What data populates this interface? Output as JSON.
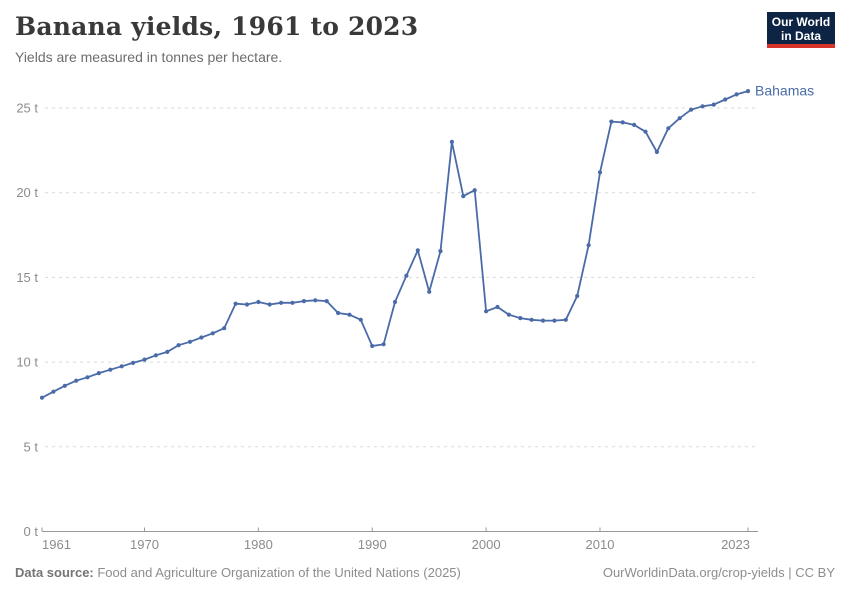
{
  "header": {
    "title": "Banana yields, 1961 to 2023",
    "subtitle": "Yields are measured in tonnes per hectare.",
    "logo": {
      "line1": "Our World",
      "line2": "in Data"
    }
  },
  "footer": {
    "source_label": "Data source:",
    "source_text": " Food and Agriculture Organization of the United Nations (2025)",
    "right_text": "OurWorldinData.org/crop-yields | CC BY"
  },
  "colors": {
    "series_blue": "#4a6ba8",
    "grid": "#d9d9d9",
    "axis": "#999999",
    "tick_label": "#8c8c8c",
    "logo_bg": "#0d2444",
    "logo_red": "#d7352a"
  },
  "chart_data": {
    "type": "line",
    "title": "Banana yields, 1961 to 2023",
    "subtitle": "Yields are measured in tonnes per hectare.",
    "xlabel": "",
    "ylabel": "tonnes per hectare",
    "unit": "t",
    "xlim": [
      1961,
      2023
    ],
    "ylim": [
      0,
      25
    ],
    "grid": "horizontal-dashed",
    "legend_position": "end-of-line-label",
    "x_ticks": [
      1961,
      1970,
      1980,
      1990,
      2000,
      2010,
      2023
    ],
    "y_ticks": [
      0,
      5,
      10,
      15,
      20,
      25
    ],
    "series": [
      {
        "name": "Bahamas",
        "color": "#4a6ba8",
        "x": [
          1961,
          1962,
          1963,
          1964,
          1965,
          1966,
          1967,
          1968,
          1969,
          1970,
          1971,
          1972,
          1973,
          1974,
          1975,
          1976,
          1977,
          1978,
          1979,
          1980,
          1981,
          1982,
          1983,
          1984,
          1985,
          1986,
          1987,
          1988,
          1989,
          1990,
          1991,
          1992,
          1993,
          1994,
          1995,
          1996,
          1997,
          1998,
          1999,
          2000,
          2001,
          2002,
          2003,
          2004,
          2005,
          2006,
          2007,
          2008,
          2009,
          2010,
          2011,
          2012,
          2013,
          2014,
          2015,
          2016,
          2017,
          2018,
          2019,
          2020,
          2021,
          2022,
          2023
        ],
        "values": [
          7.9,
          8.25,
          8.6,
          8.9,
          9.1,
          9.35,
          9.55,
          9.75,
          9.95,
          10.15,
          10.4,
          10.6,
          11.0,
          11.2,
          11.45,
          11.7,
          12.0,
          13.45,
          13.4,
          13.55,
          13.4,
          13.5,
          13.5,
          13.6,
          13.65,
          13.6,
          12.9,
          12.8,
          12.5,
          10.95,
          11.05,
          13.55,
          15.1,
          16.6,
          14.15,
          16.55,
          23.0,
          19.8,
          20.15,
          13.0,
          13.25,
          12.8,
          12.6,
          12.5,
          12.45,
          12.45,
          12.5,
          13.9,
          16.9,
          21.2,
          24.2,
          24.15,
          24.0,
          23.6,
          22.4,
          23.8,
          24.4,
          24.9,
          25.1,
          25.2,
          25.5,
          25.8,
          26.0
        ]
      }
    ]
  }
}
